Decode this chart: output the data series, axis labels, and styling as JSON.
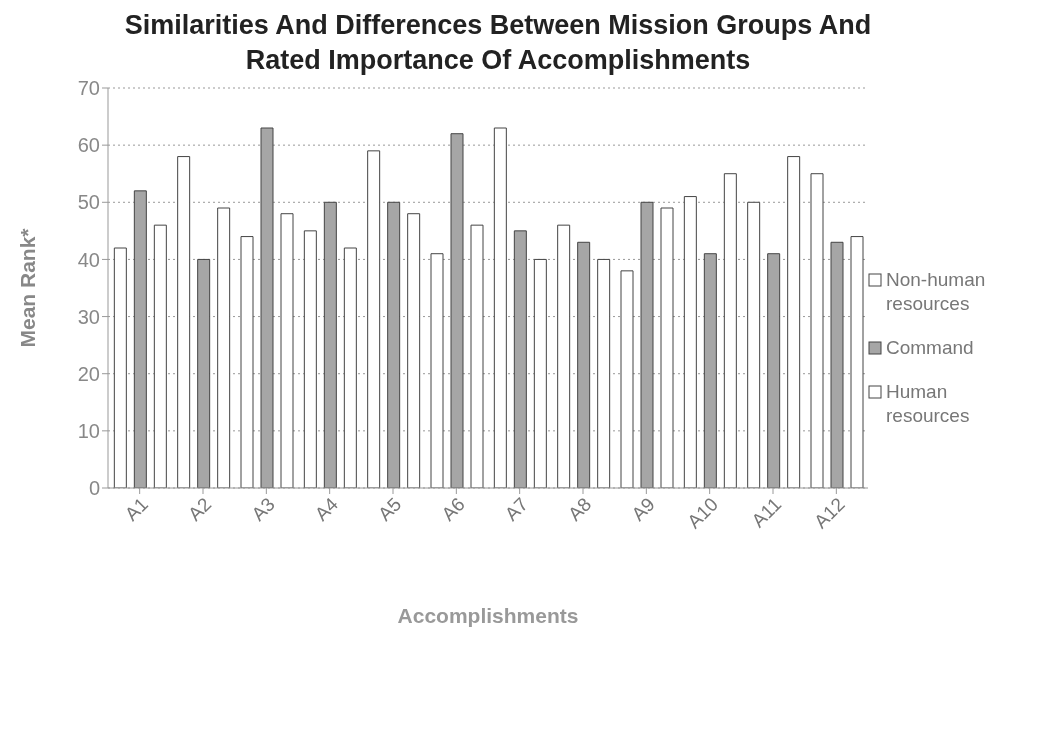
{
  "chart_data": {
    "type": "bar",
    "title": "Similarities And Differences Between Mission Groups And Rated Importance Of Accomplishments",
    "xlabel": "Accomplishments",
    "ylabel": "Mean Rank*",
    "categories": [
      "A1",
      "A2",
      "A3",
      "A4",
      "A5",
      "A6",
      "A7",
      "A8",
      "A9",
      "A10",
      "A11",
      "A12"
    ],
    "series": [
      {
        "name": "Non-human resources",
        "color": "#ffffff",
        "values": [
          42,
          58,
          44,
          45,
          59,
          41,
          63,
          46,
          38,
          51,
          50,
          55
        ]
      },
      {
        "name": "Command",
        "color": "#a6a6a6",
        "values": [
          52,
          40,
          63,
          50,
          50,
          62,
          45,
          43,
          50,
          41,
          41,
          43
        ]
      },
      {
        "name": "Human resources",
        "color": "#ffffff",
        "values": [
          46,
          49,
          48,
          42,
          48,
          46,
          40,
          40,
          49,
          55,
          58,
          44
        ]
      }
    ],
    "ylim": [
      0,
      70
    ],
    "yticks": [
      0,
      10,
      20,
      30,
      40,
      50,
      60,
      70
    ],
    "grid": "y",
    "legend": "right"
  }
}
